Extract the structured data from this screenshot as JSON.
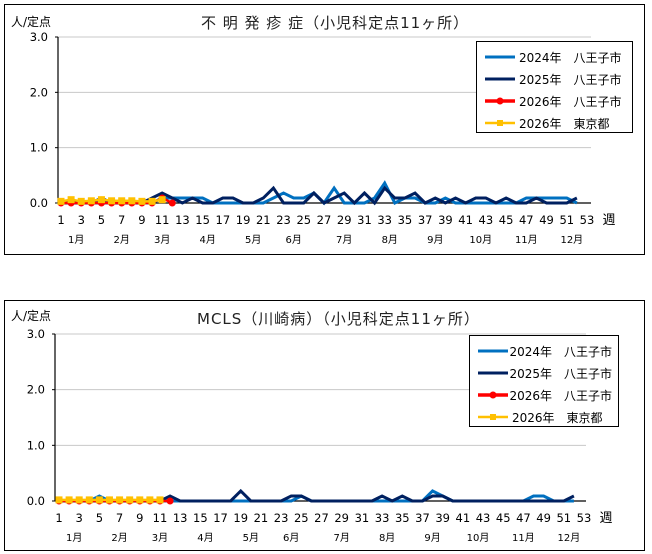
{
  "colors": {
    "y2024": "#0070C0",
    "y2025": "#002060",
    "y2026_hachioji": "#FF0000",
    "y2026_tokyo": "#FFC000",
    "grid": "#C8C8C8",
    "axis": "#000000"
  },
  "charts": [
    {
      "title": "不 明 発 疹 症（小児科定点11ヶ所）",
      "y_unit": "人/定点",
      "x_unit": "週",
      "legend": [
        {
          "label": "2024年　八王子市"
        },
        {
          "label": "2025年　八王子市"
        },
        {
          "label": "2026年　八王子市"
        },
        {
          "label": "2026年　東京都"
        }
      ]
    },
    {
      "title": "MCLS（川崎病）（小児科定点11ヶ所）",
      "y_unit": "人/定点",
      "x_unit": "週",
      "legend": [
        {
          "label": "2024年　八王子市"
        },
        {
          "label": "2025年　八王子市"
        },
        {
          "label": "2026年　八王子市"
        },
        {
          "label": "2026年　東京都"
        }
      ]
    }
  ],
  "chart_data": [
    {
      "type": "line",
      "title": "不 明 発 疹 症（小児科定点11ヶ所）",
      "xlabel": "週",
      "ylabel": "人/定点",
      "ylim": [
        0,
        3.0
      ],
      "yticks": [
        "0.0",
        "1.0",
        "2.0",
        "3.0"
      ],
      "xticks": [
        1,
        3,
        5,
        7,
        9,
        11,
        13,
        15,
        17,
        19,
        21,
        23,
        25,
        27,
        29,
        31,
        33,
        35,
        37,
        39,
        41,
        43,
        45,
        47,
        49,
        51,
        53
      ],
      "month_labels": [
        {
          "label": "1月",
          "week": 2.5
        },
        {
          "label": "2月",
          "week": 7
        },
        {
          "label": "3月",
          "week": 11
        },
        {
          "label": "4月",
          "week": 15.5
        },
        {
          "label": "5月",
          "week": 20
        },
        {
          "label": "6月",
          "week": 24
        },
        {
          "label": "7月",
          "week": 29
        },
        {
          "label": "8月",
          "week": 33.5
        },
        {
          "label": "9月",
          "week": 38
        },
        {
          "label": "10月",
          "week": 42.5
        },
        {
          "label": "11月",
          "week": 47
        },
        {
          "label": "12月",
          "week": 51.5
        }
      ],
      "grid": true,
      "legend_position": "upper right",
      "series": [
        {
          "name": "2024年　八王子市",
          "color": "#0070C0",
          "x": [
            1,
            2,
            3,
            4,
            5,
            6,
            7,
            8,
            9,
            10,
            11,
            12,
            13,
            14,
            15,
            16,
            17,
            18,
            19,
            20,
            21,
            22,
            23,
            24,
            25,
            26,
            27,
            28,
            29,
            30,
            31,
            32,
            33,
            34,
            35,
            36,
            37,
            38,
            39,
            40,
            41,
            42,
            43,
            44,
            45,
            46,
            47,
            48,
            49,
            50,
            51,
            52
          ],
          "values": [
            0.0,
            0.0,
            0.0,
            0.0,
            0.0,
            0.0,
            0.0,
            0.0,
            0.0,
            0.0,
            0.09,
            0.09,
            0.09,
            0.09,
            0.09,
            0.0,
            0.0,
            0.0,
            0.0,
            0.0,
            0.0,
            0.09,
            0.18,
            0.09,
            0.09,
            0.18,
            0.0,
            0.27,
            0.0,
            0.0,
            0.0,
            0.09,
            0.36,
            0.0,
            0.09,
            0.09,
            0.0,
            0.0,
            0.09,
            0.0,
            0.0,
            0.0,
            0.0,
            0.0,
            0.0,
            0.0,
            0.09,
            0.09,
            0.09,
            0.09,
            0.09,
            0.0
          ]
        },
        {
          "name": "2025年　八王子市",
          "color": "#002060",
          "x": [
            1,
            2,
            3,
            4,
            5,
            6,
            7,
            8,
            9,
            10,
            11,
            12,
            13,
            14,
            15,
            16,
            17,
            18,
            19,
            20,
            21,
            22,
            23,
            24,
            25,
            26,
            27,
            28,
            29,
            30,
            31,
            32,
            33,
            34,
            35,
            36,
            37,
            38,
            39,
            40,
            41,
            42,
            43,
            44,
            45,
            46,
            47,
            48,
            49,
            50,
            51,
            52
          ],
          "values": [
            0.0,
            0.0,
            0.0,
            0.0,
            0.09,
            0.0,
            0.0,
            0.0,
            0.0,
            0.09,
            0.18,
            0.09,
            0.0,
            0.09,
            0.0,
            0.0,
            0.09,
            0.09,
            0.0,
            0.0,
            0.09,
            0.27,
            0.0,
            0.0,
            0.0,
            0.18,
            0.0,
            0.09,
            0.18,
            0.0,
            0.18,
            0.0,
            0.27,
            0.09,
            0.09,
            0.18,
            0.0,
            0.09,
            0.0,
            0.09,
            0.0,
            0.09,
            0.09,
            0.0,
            0.09,
            0.0,
            0.0,
            0.09,
            0.0,
            0.0,
            0.0,
            0.09
          ]
        },
        {
          "name": "2026年　八王子市",
          "color": "#FF0000",
          "x": [
            1,
            2,
            3,
            4,
            5,
            6,
            7,
            8,
            9,
            10,
            11,
            12
          ],
          "values": [
            0.0,
            0.0,
            0.0,
            0.0,
            0.0,
            0.0,
            0.0,
            0.0,
            0.0,
            0.0,
            0.09,
            0.0
          ]
        },
        {
          "name": "2026年　東京都",
          "color": "#FFC000",
          "x": [
            1,
            2,
            3,
            4,
            5,
            6,
            7,
            8,
            9,
            10,
            11
          ],
          "values": [
            0.03,
            0.06,
            0.03,
            0.04,
            0.06,
            0.04,
            0.04,
            0.04,
            0.03,
            0.03,
            0.06
          ]
        }
      ]
    },
    {
      "type": "line",
      "title": "MCLS（川崎病）（小児科定点11ヶ所）",
      "xlabel": "週",
      "ylabel": "人/定点",
      "ylim": [
        0,
        3.0
      ],
      "yticks": [
        "0.0",
        "1.0",
        "2.0",
        "3.0"
      ],
      "xticks": [
        1,
        3,
        5,
        7,
        9,
        11,
        13,
        15,
        17,
        19,
        21,
        23,
        25,
        27,
        29,
        31,
        33,
        35,
        37,
        39,
        41,
        43,
        45,
        47,
        49,
        51,
        53
      ],
      "month_labels": [
        {
          "label": "1月",
          "week": 2.5
        },
        {
          "label": "2月",
          "week": 7
        },
        {
          "label": "3月",
          "week": 11
        },
        {
          "label": "4月",
          "week": 15.5
        },
        {
          "label": "5月",
          "week": 20
        },
        {
          "label": "6月",
          "week": 24
        },
        {
          "label": "7月",
          "week": 29
        },
        {
          "label": "8月",
          "week": 33.5
        },
        {
          "label": "9月",
          "week": 38
        },
        {
          "label": "10月",
          "week": 42.5
        },
        {
          "label": "11月",
          "week": 47
        },
        {
          "label": "12月",
          "week": 51.5
        }
      ],
      "grid": true,
      "legend_position": "upper right",
      "series": [
        {
          "name": "2024年　八王子市",
          "color": "#0070C0",
          "x": [
            1,
            2,
            3,
            4,
            5,
            6,
            7,
            8,
            9,
            10,
            11,
            12,
            13,
            14,
            15,
            16,
            17,
            18,
            19,
            20,
            21,
            22,
            23,
            24,
            25,
            26,
            27,
            28,
            29,
            30,
            31,
            32,
            33,
            34,
            35,
            36,
            37,
            38,
            39,
            40,
            41,
            42,
            43,
            44,
            45,
            46,
            47,
            48,
            49,
            50,
            51,
            52
          ],
          "values": [
            0.0,
            0.0,
            0.0,
            0.0,
            0.09,
            0.0,
            0.0,
            0.0,
            0.0,
            0.0,
            0.0,
            0.0,
            0.0,
            0.0,
            0.0,
            0.0,
            0.0,
            0.0,
            0.0,
            0.0,
            0.0,
            0.0,
            0.0,
            0.0,
            0.09,
            0.0,
            0.0,
            0.0,
            0.0,
            0.0,
            0.0,
            0.0,
            0.0,
            0.0,
            0.0,
            0.0,
            0.0,
            0.18,
            0.09,
            0.0,
            0.0,
            0.0,
            0.0,
            0.0,
            0.0,
            0.0,
            0.0,
            0.09,
            0.09,
            0.0,
            0.0,
            0.0
          ]
        },
        {
          "name": "2025年　八王子市",
          "color": "#002060",
          "x": [
            1,
            2,
            3,
            4,
            5,
            6,
            7,
            8,
            9,
            10,
            11,
            12,
            13,
            14,
            15,
            16,
            17,
            18,
            19,
            20,
            21,
            22,
            23,
            24,
            25,
            26,
            27,
            28,
            29,
            30,
            31,
            32,
            33,
            34,
            35,
            36,
            37,
            38,
            39,
            40,
            41,
            42,
            43,
            44,
            45,
            46,
            47,
            48,
            49,
            50,
            51,
            52
          ],
          "values": [
            0.0,
            0.0,
            0.0,
            0.0,
            0.0,
            0.0,
            0.0,
            0.0,
            0.0,
            0.0,
            0.0,
            0.09,
            0.0,
            0.0,
            0.0,
            0.0,
            0.0,
            0.0,
            0.18,
            0.0,
            0.0,
            0.0,
            0.0,
            0.09,
            0.09,
            0.0,
            0.0,
            0.0,
            0.0,
            0.0,
            0.0,
            0.0,
            0.09,
            0.0,
            0.09,
            0.0,
            0.0,
            0.09,
            0.09,
            0.0,
            0.0,
            0.0,
            0.0,
            0.0,
            0.0,
            0.0,
            0.0,
            0.0,
            0.0,
            0.0,
            0.0,
            0.09
          ]
        },
        {
          "name": "2026年　八王子市",
          "color": "#FF0000",
          "x": [
            1,
            2,
            3,
            4,
            5,
            6,
            7,
            8,
            9,
            10,
            11,
            12
          ],
          "values": [
            0.0,
            0.0,
            0.0,
            0.0,
            0.0,
            0.0,
            0.0,
            0.0,
            0.0,
            0.0,
            0.0,
            0.0
          ]
        },
        {
          "name": "2026年　東京都",
          "color": "#FFC000",
          "x": [
            1,
            2,
            3,
            4,
            5,
            6,
            7,
            8,
            9,
            10,
            11
          ],
          "values": [
            0.02,
            0.02,
            0.02,
            0.02,
            0.02,
            0.02,
            0.02,
            0.02,
            0.02,
            0.02,
            0.02
          ]
        }
      ]
    }
  ]
}
